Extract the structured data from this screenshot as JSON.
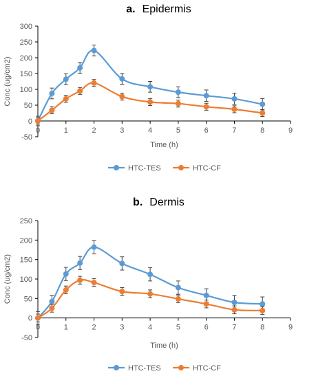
{
  "chart_data": [
    {
      "type": "line",
      "title_prefix": "a.",
      "title": "Epidermis",
      "xlabel": "Time (h)",
      "ylabel": "Conc (ug/cm2)",
      "xlim": [
        0,
        9
      ],
      "ylim": [
        -50,
        300
      ],
      "xticks": [
        0,
        1,
        2,
        3,
        4,
        5,
        6,
        7,
        8,
        9
      ],
      "yticks": [
        -50,
        0,
        50,
        100,
        150,
        200,
        250,
        300
      ],
      "grid": false,
      "legend": "bottom",
      "series": [
        {
          "name": "HTC-TES",
          "color": "#5B9BD5",
          "x": [
            0,
            0.5,
            1,
            1.5,
            2,
            3,
            4,
            5,
            6,
            7,
            8
          ],
          "y": [
            0,
            87,
            132,
            168,
            223,
            133,
            108,
            91,
            80,
            70,
            53
          ],
          "err": [
            15,
            17,
            17,
            17,
            17,
            17,
            17,
            17,
            18,
            18,
            18
          ]
        },
        {
          "name": "HTC-CF",
          "color": "#ED7D31",
          "x": [
            0,
            0.5,
            1,
            1.5,
            2,
            3,
            4,
            5,
            6,
            7,
            8
          ],
          "y": [
            0,
            34,
            70,
            95,
            120,
            77,
            60,
            55,
            45,
            37,
            25
          ],
          "err": [
            10,
            11,
            11,
            11,
            11,
            11,
            11,
            11,
            11,
            11,
            11
          ]
        }
      ]
    },
    {
      "type": "line",
      "title_prefix": "b.",
      "title": "Dermis",
      "xlabel": "Time (h)",
      "ylabel": "Conc (ug/cm2)",
      "xlim": [
        0,
        9
      ],
      "ylim": [
        -50,
        250
      ],
      "xticks": [
        0,
        1,
        2,
        3,
        4,
        5,
        6,
        7,
        8,
        9
      ],
      "yticks": [
        -50,
        0,
        50,
        100,
        150,
        200,
        250
      ],
      "grid": false,
      "legend": "bottom",
      "series": [
        {
          "name": "HTC-TES",
          "color": "#5B9BD5",
          "x": [
            0,
            0.5,
            1,
            1.5,
            2,
            3,
            4,
            5,
            6,
            7,
            8
          ],
          "y": [
            0,
            42,
            113,
            141,
            182,
            140,
            112,
            78,
            58,
            40,
            36
          ],
          "err": [
            16,
            16,
            17,
            17,
            17,
            17,
            17,
            17,
            17,
            18,
            18
          ]
        },
        {
          "name": "HTC-CF",
          "color": "#ED7D31",
          "x": [
            0,
            0.5,
            1,
            1.5,
            2,
            3,
            4,
            5,
            6,
            7,
            8
          ],
          "y": [
            0,
            25,
            72,
            97,
            91,
            68,
            62,
            49,
            36,
            21,
            19
          ],
          "err": [
            10,
            10,
            10,
            10,
            10,
            10,
            10,
            10,
            10,
            10,
            10
          ]
        }
      ]
    }
  ]
}
